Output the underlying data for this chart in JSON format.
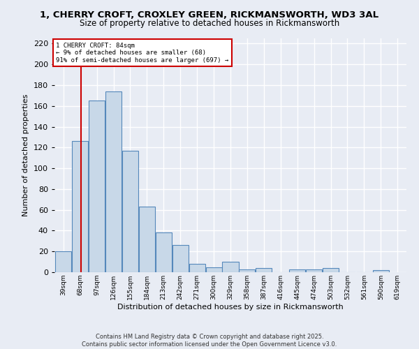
{
  "title_line1": "1, CHERRY CROFT, CROXLEY GREEN, RICKMANSWORTH, WD3 3AL",
  "title_line2": "Size of property relative to detached houses in Rickmansworth",
  "xlabel": "Distribution of detached houses by size in Rickmansworth",
  "ylabel": "Number of detached properties",
  "bin_labels": [
    "39sqm",
    "68sqm",
    "97sqm",
    "126sqm",
    "155sqm",
    "184sqm",
    "213sqm",
    "242sqm",
    "271sqm",
    "300sqm",
    "329sqm",
    "358sqm",
    "387sqm",
    "416sqm",
    "445sqm",
    "474sqm",
    "503sqm",
    "532sqm",
    "561sqm",
    "590sqm",
    "619sqm"
  ],
  "bin_edges": [
    39,
    68,
    97,
    126,
    155,
    184,
    213,
    242,
    271,
    300,
    329,
    358,
    387,
    416,
    445,
    474,
    503,
    532,
    561,
    590,
    619
  ],
  "bar_heights": [
    20,
    126,
    165,
    174,
    117,
    63,
    38,
    26,
    8,
    5,
    10,
    3,
    4,
    0,
    3,
    3,
    4,
    0,
    0,
    2
  ],
  "bar_color": "#c8d8e8",
  "bar_edge_color": "#5588bb",
  "vline_x": 84,
  "vline_color": "#cc0000",
  "annotation_text": "1 CHERRY CROFT: 84sqm\n← 9% of detached houses are smaller (68)\n91% of semi-detached houses are larger (697) →",
  "annotation_box_color": "#cc0000",
  "annotation_facecolor": "white",
  "ylim": [
    0,
    225
  ],
  "yticks": [
    0,
    20,
    40,
    60,
    80,
    100,
    120,
    140,
    160,
    180,
    200,
    220
  ],
  "background_color": "#e8ecf4",
  "grid_color": "white",
  "footer": "Contains HM Land Registry data © Crown copyright and database right 2025.\nContains public sector information licensed under the Open Government Licence v3.0."
}
